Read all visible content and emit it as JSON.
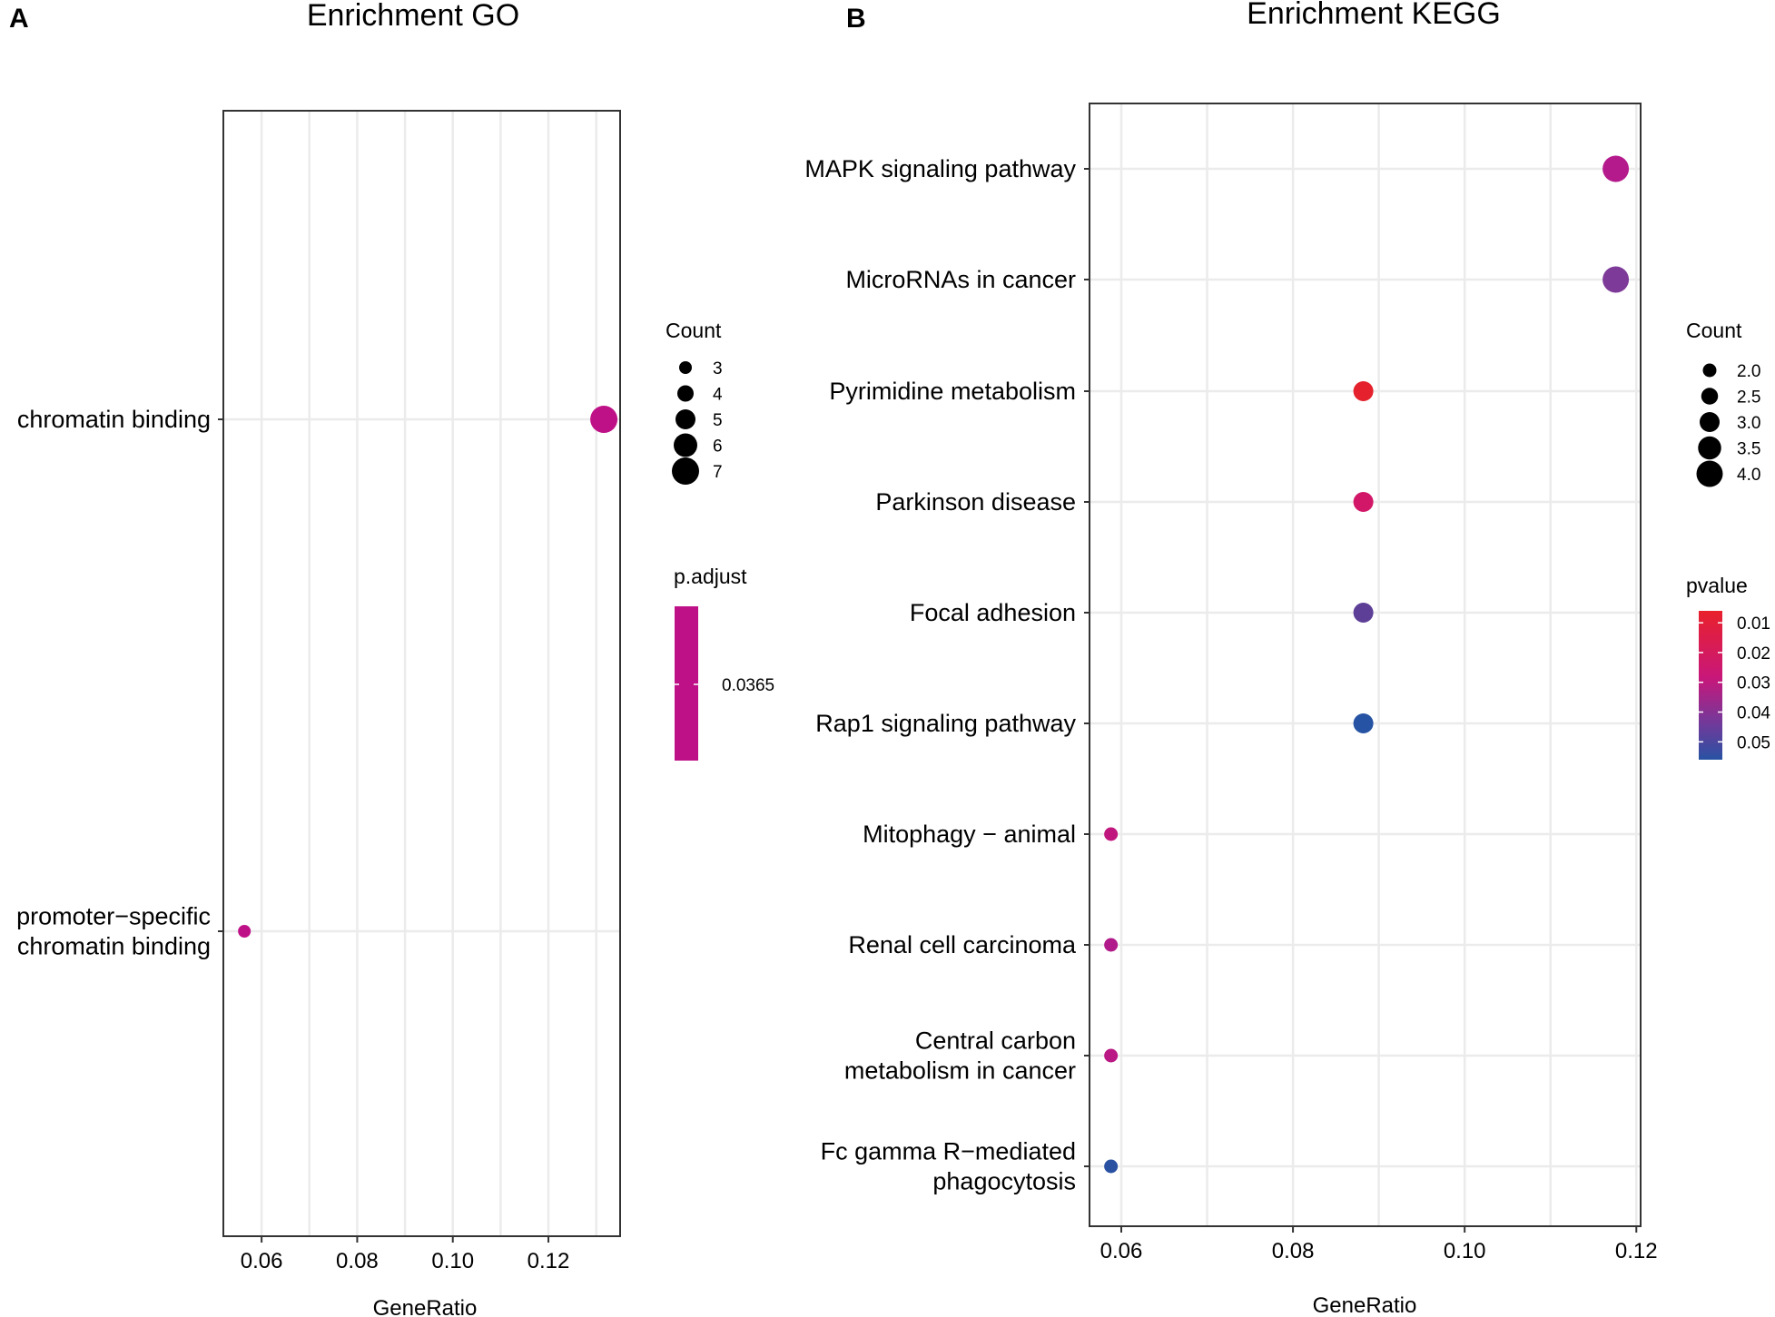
{
  "panels": {
    "go": {
      "letter": "A"
    },
    "kegg": {
      "letter": "B"
    }
  },
  "chart_data": [
    {
      "id": "go",
      "type": "scatter",
      "title": "Enrichment GO",
      "xlabel": "GeneRatio",
      "ylabel": "",
      "xlim": [
        0.052,
        0.135
      ],
      "xticks": [
        0.06,
        0.08,
        0.1,
        0.12
      ],
      "xtick_labels": [
        "0.06",
        "0.08",
        "0.10",
        "0.12"
      ],
      "grid": true,
      "categories": [
        "chromatin binding",
        "promoter−specific\nchromatin binding"
      ],
      "points": [
        {
          "term": "chromatin binding",
          "gene_ratio": 0.1316,
          "count": 7,
          "color_value": 0.0365,
          "color": "#bf1187"
        },
        {
          "term": "promoter−specific\nchromatin binding",
          "gene_ratio": 0.0564,
          "count": 3,
          "color_value": 0.0365,
          "color": "#bf1187"
        }
      ],
      "size_legend": {
        "title": "Count",
        "values": [
          3,
          4,
          5,
          6,
          7
        ],
        "labels": [
          "3",
          "4",
          "5",
          "6",
          "7"
        ],
        "min": 3,
        "max": 7
      },
      "color_legend": {
        "title": "p.adjust",
        "labels": [
          "0.0365"
        ],
        "colors": [
          "#bf1187"
        ]
      }
    },
    {
      "id": "kegg",
      "type": "scatter",
      "title": "Enrichment KEGG",
      "xlabel": "GeneRatio",
      "ylabel": "",
      "xlim": [
        0.0563,
        0.1205
      ],
      "xticks": [
        0.06,
        0.08,
        0.1,
        0.12
      ],
      "xtick_labels": [
        "0.06",
        "0.08",
        "0.10",
        "0.12"
      ],
      "grid": true,
      "categories": [
        "MAPK signaling pathway",
        "MicroRNAs in cancer",
        "Pyrimidine metabolism",
        "Parkinson disease",
        "Focal adhesion",
        "Rap1 signaling pathway",
        "Mitophagy − animal",
        "Renal cell carcinoma",
        "Central carbon\nmetabolism in cancer",
        "Fc gamma R−mediated\nphagocytosis"
      ],
      "points": [
        {
          "term": "MAPK signaling pathway",
          "gene_ratio": 0.1176,
          "count": 4,
          "pvalue": 0.031,
          "color": "#b41a8c"
        },
        {
          "term": "MicroRNAs in cancer",
          "gene_ratio": 0.1176,
          "count": 4,
          "pvalue": 0.041,
          "color": "#7d3a98"
        },
        {
          "term": "Pyrimidine metabolism",
          "gene_ratio": 0.0882,
          "count": 3,
          "pvalue": 0.006,
          "color": "#e4212c"
        },
        {
          "term": "Parkinson disease",
          "gene_ratio": 0.0882,
          "count": 3,
          "pvalue": 0.025,
          "color": "#d21769"
        },
        {
          "term": "Focal adhesion",
          "gene_ratio": 0.0882,
          "count": 3,
          "pvalue": 0.045,
          "color": "#5d3f97"
        },
        {
          "term": "Rap1 signaling pathway",
          "gene_ratio": 0.0882,
          "count": 3,
          "pvalue": 0.054,
          "color": "#2653a3"
        },
        {
          "term": "Mitophagy − animal",
          "gene_ratio": 0.0588,
          "count": 2,
          "pvalue": 0.029,
          "color": "#c0177e"
        },
        {
          "term": "Renal cell carcinoma",
          "gene_ratio": 0.0588,
          "count": 2,
          "pvalue": 0.032,
          "color": "#b01a8a"
        },
        {
          "term": "Central carbon\nmetabolism in cancer",
          "gene_ratio": 0.0588,
          "count": 2,
          "pvalue": 0.03,
          "color": "#b91885"
        },
        {
          "term": "Fc gamma R−mediated\nphagocytosis",
          "gene_ratio": 0.0588,
          "count": 2,
          "pvalue": 0.054,
          "color": "#2a50a2"
        }
      ],
      "size_legend": {
        "title": "Count",
        "values": [
          2.0,
          2.5,
          3.0,
          3.5,
          4.0
        ],
        "labels": [
          "2.0",
          "2.5",
          "3.0",
          "3.5",
          "4.0"
        ],
        "min": 2,
        "max": 4
      },
      "color_legend": {
        "title": "pvalue",
        "labels": [
          "0.01",
          "0.02",
          "0.03",
          "0.04",
          "0.05"
        ],
        "values": [
          0.01,
          0.02,
          0.03,
          0.04,
          0.05
        ],
        "range": [
          0.006,
          0.056
        ],
        "colors": [
          "#e9212c",
          "#c8177a",
          "#2852a3"
        ]
      }
    }
  ]
}
